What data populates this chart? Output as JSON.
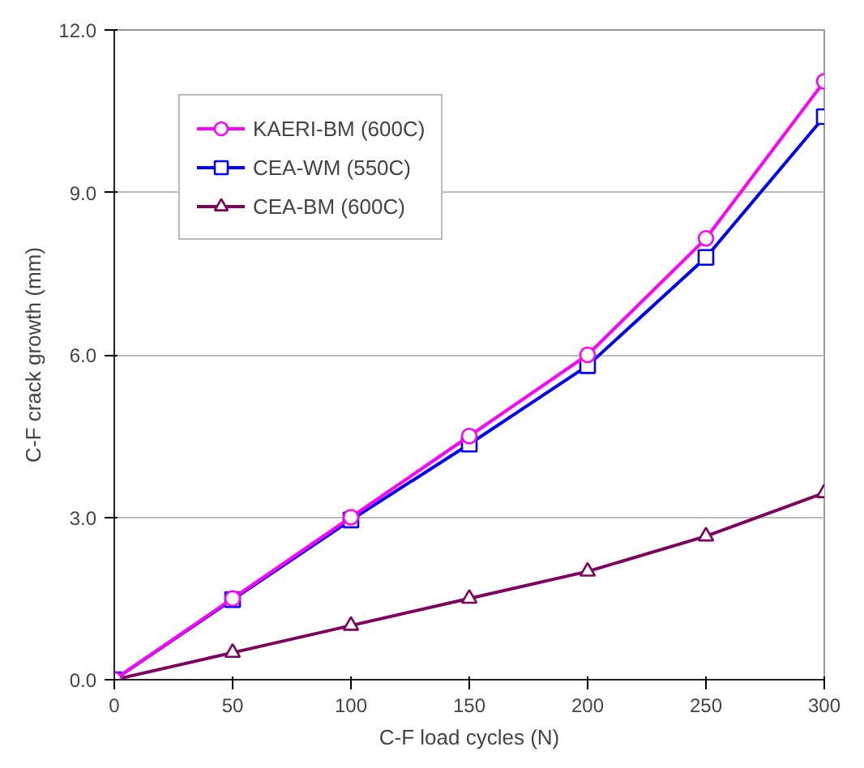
{
  "chart_data": {
    "type": "line",
    "xlabel": "C-F load cycles (N)",
    "ylabel": "C-F crack growth (mm)",
    "x": [
      0,
      50,
      100,
      150,
      200,
      250,
      300
    ],
    "series": [
      {
        "name": "KAERI-BM (600C)",
        "color": "#ff00ff",
        "values": [
          0,
          1.5,
          3.0,
          4.5,
          6.0,
          8.15,
          11.05
        ],
        "marker": "circle"
      },
      {
        "name": "CEA-WM (550C)",
        "color": "#0000ff",
        "values": [
          0,
          1.48,
          2.95,
          4.35,
          5.8,
          7.8,
          10.4
        ],
        "marker": "square"
      },
      {
        "name": "CEA-BM (600C)",
        "color": "#800060",
        "values": [
          0,
          0.5,
          1.0,
          1.5,
          2.0,
          2.65,
          3.45
        ],
        "marker": "triangle"
      }
    ],
    "xlim": [
      0,
      300
    ],
    "ylim": [
      0,
      12
    ],
    "xticks": [
      0,
      50,
      100,
      150,
      200,
      250,
      300
    ],
    "yticks": [
      {
        "value": 0,
        "label": "0.0"
      },
      {
        "value": 3,
        "label": "3.0"
      },
      {
        "value": 6,
        "label": "6.0"
      },
      {
        "value": 9,
        "label": "9.0"
      },
      {
        "value": 12,
        "label": "12.0"
      }
    ],
    "grid": "y",
    "legend": "top left",
    "line_style": "solid"
  }
}
